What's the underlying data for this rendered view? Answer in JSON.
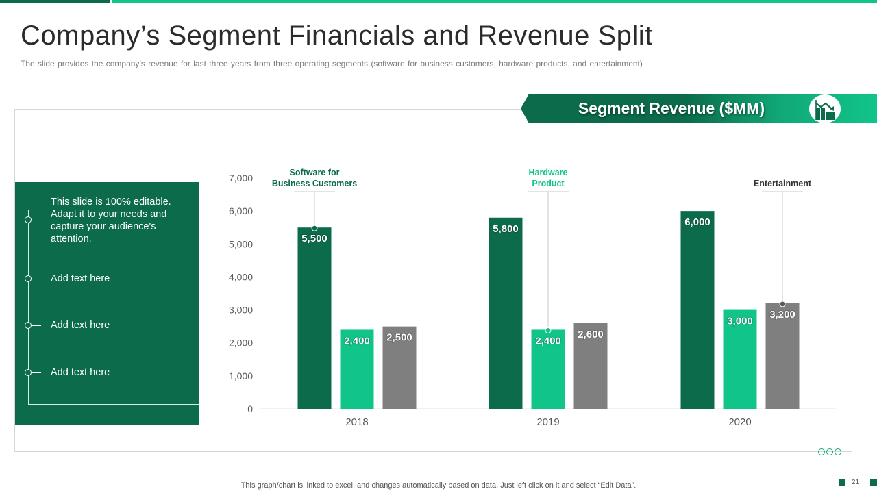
{
  "slide": {
    "title": "Company’s Segment Financials and Revenue Split",
    "subtitle": "The slide provides  the company’s revenue  for last three years from three operating segments (software for business customers, hardware  products, and entertainment)",
    "banner_title": "Segment Revenue ($MM)",
    "banner_icon": "chart-decline-icon",
    "footer_note": "This graph/chart is linked to excel,  and changes automatically based on data. Just left click on it and select “Edit Data”.",
    "page_number": "21",
    "colors": {
      "dark_green": "#0b6b4a",
      "light_green": "#11c48a",
      "gray": "#7f7f7f"
    }
  },
  "left_panel": {
    "items": [
      "This slide is 100% editable. Adapt it to your needs and capture your audience's attention.",
      "Add text here",
      "Add text here",
      "Add text here"
    ]
  },
  "chart_data": {
    "type": "bar",
    "title": "Segment Revenue ($MM)",
    "categories": [
      "2018",
      "2019",
      "2020"
    ],
    "series": [
      {
        "name": "Software for Business Customers",
        "color": "#0b6b4a",
        "values": [
          5500,
          5800,
          6000
        ]
      },
      {
        "name": "Hardware Product",
        "color": "#11c48a",
        "values": [
          2400,
          2400,
          3000
        ]
      },
      {
        "name": "Entertainment",
        "color": "#7f7f7f",
        "values": [
          2500,
          2600,
          3200
        ]
      }
    ],
    "data_labels": [
      [
        "5,500",
        "2,400",
        "2,500"
      ],
      [
        "5,800",
        "2,400",
        "2,600"
      ],
      [
        "6,000",
        "3,000",
        "3,200"
      ]
    ],
    "ylim": [
      0,
      7000
    ],
    "yticks": [
      0,
      1000,
      2000,
      3000,
      4000,
      5000,
      6000,
      7000
    ],
    "ytick_labels": [
      "0",
      "1,000",
      "2,000",
      "3,000",
      "4,000",
      "5,000",
      "6,000",
      "7,000"
    ],
    "grid": false,
    "xlabel": "",
    "ylabel": "",
    "annotations": [
      {
        "text_lines": [
          "Software for",
          "Business Customers"
        ],
        "series": 0,
        "category": 0
      },
      {
        "text_lines": [
          "Hardware",
          "Product"
        ],
        "series": 1,
        "category": 1
      },
      {
        "text_lines": [
          "Entertainment"
        ],
        "series": 2,
        "category": 2
      }
    ]
  }
}
